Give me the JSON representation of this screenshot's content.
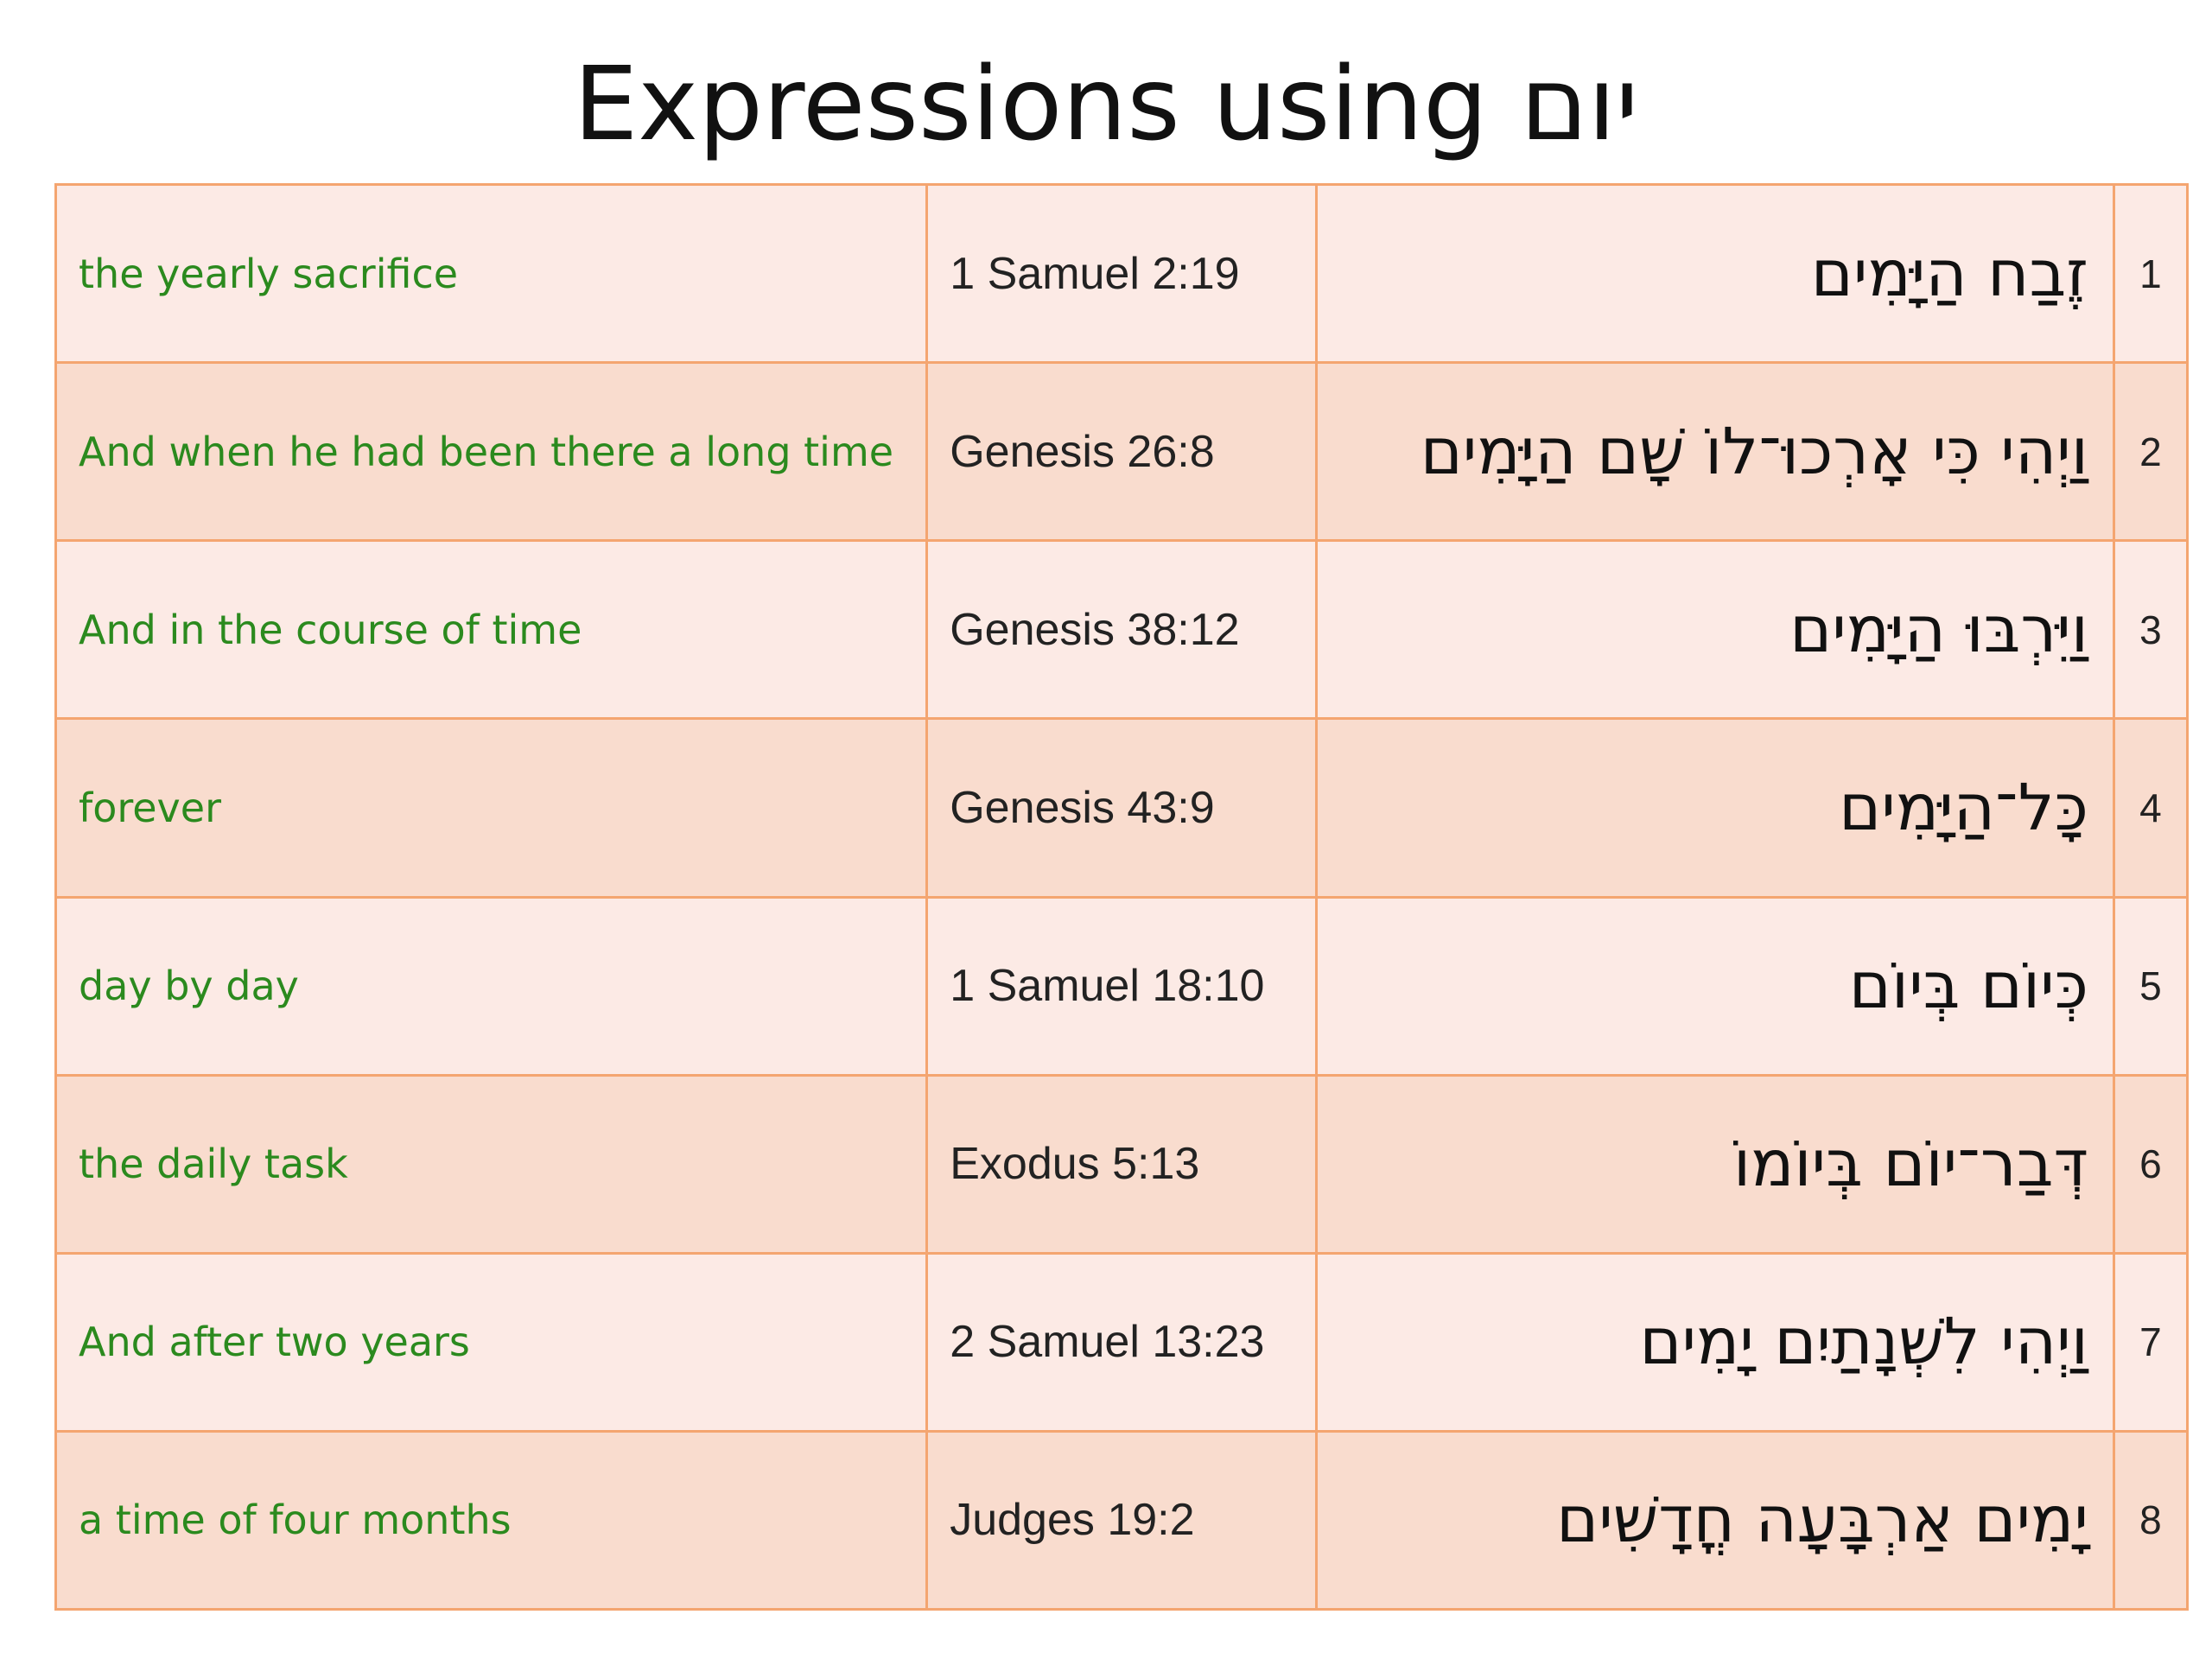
{
  "title": "Expressions using יום",
  "rows": [
    {
      "english": "the yearly sacrifice",
      "reference": "1 Samuel 2:19",
      "hebrew": "זֶבַח הַיָּמִים",
      "number": "1"
    },
    {
      "english": "And when he had been there a long time",
      "reference": "Genesis 26:8",
      "hebrew": "וַיְהִי כִּי אָרְכוּ־לוֹ שָׁם הַיָּמִים",
      "number": "2"
    },
    {
      "english": "And in the course of time",
      "reference": "Genesis 38:12",
      "hebrew": "וַיִּרְבּוּ הַיָּמִים",
      "number": "3"
    },
    {
      "english": "forever",
      "reference": "Genesis 43:9",
      "hebrew": "כָּל־הַיָּמִים",
      "number": "4"
    },
    {
      "english": "day by day",
      "reference": "1 Samuel 18:10",
      "hebrew": "כְּיוֹם בְּיוֹם",
      "number": "5"
    },
    {
      "english": "the daily task",
      "reference": "Exodus 5:13",
      "hebrew": "דְּבַר־יוֹם בְּיוֹמוֹ",
      "number": "6"
    },
    {
      "english": "And after two years",
      "reference": "2 Samuel 13:23",
      "hebrew": "וַיְהִי לִשְׁנָתַיִם יָמִים",
      "number": "7"
    },
    {
      "english": "a time of four months",
      "reference": "Judges 19:2",
      "hebrew": "יָמִים אַרְבָּעָה חֳדָשִׁים",
      "number": "8"
    }
  ],
  "colors": {
    "english_text": "#2b8a1e",
    "border": "#f4a570",
    "row_light": "#fceae5",
    "row_dark": "#f9dcce"
  }
}
